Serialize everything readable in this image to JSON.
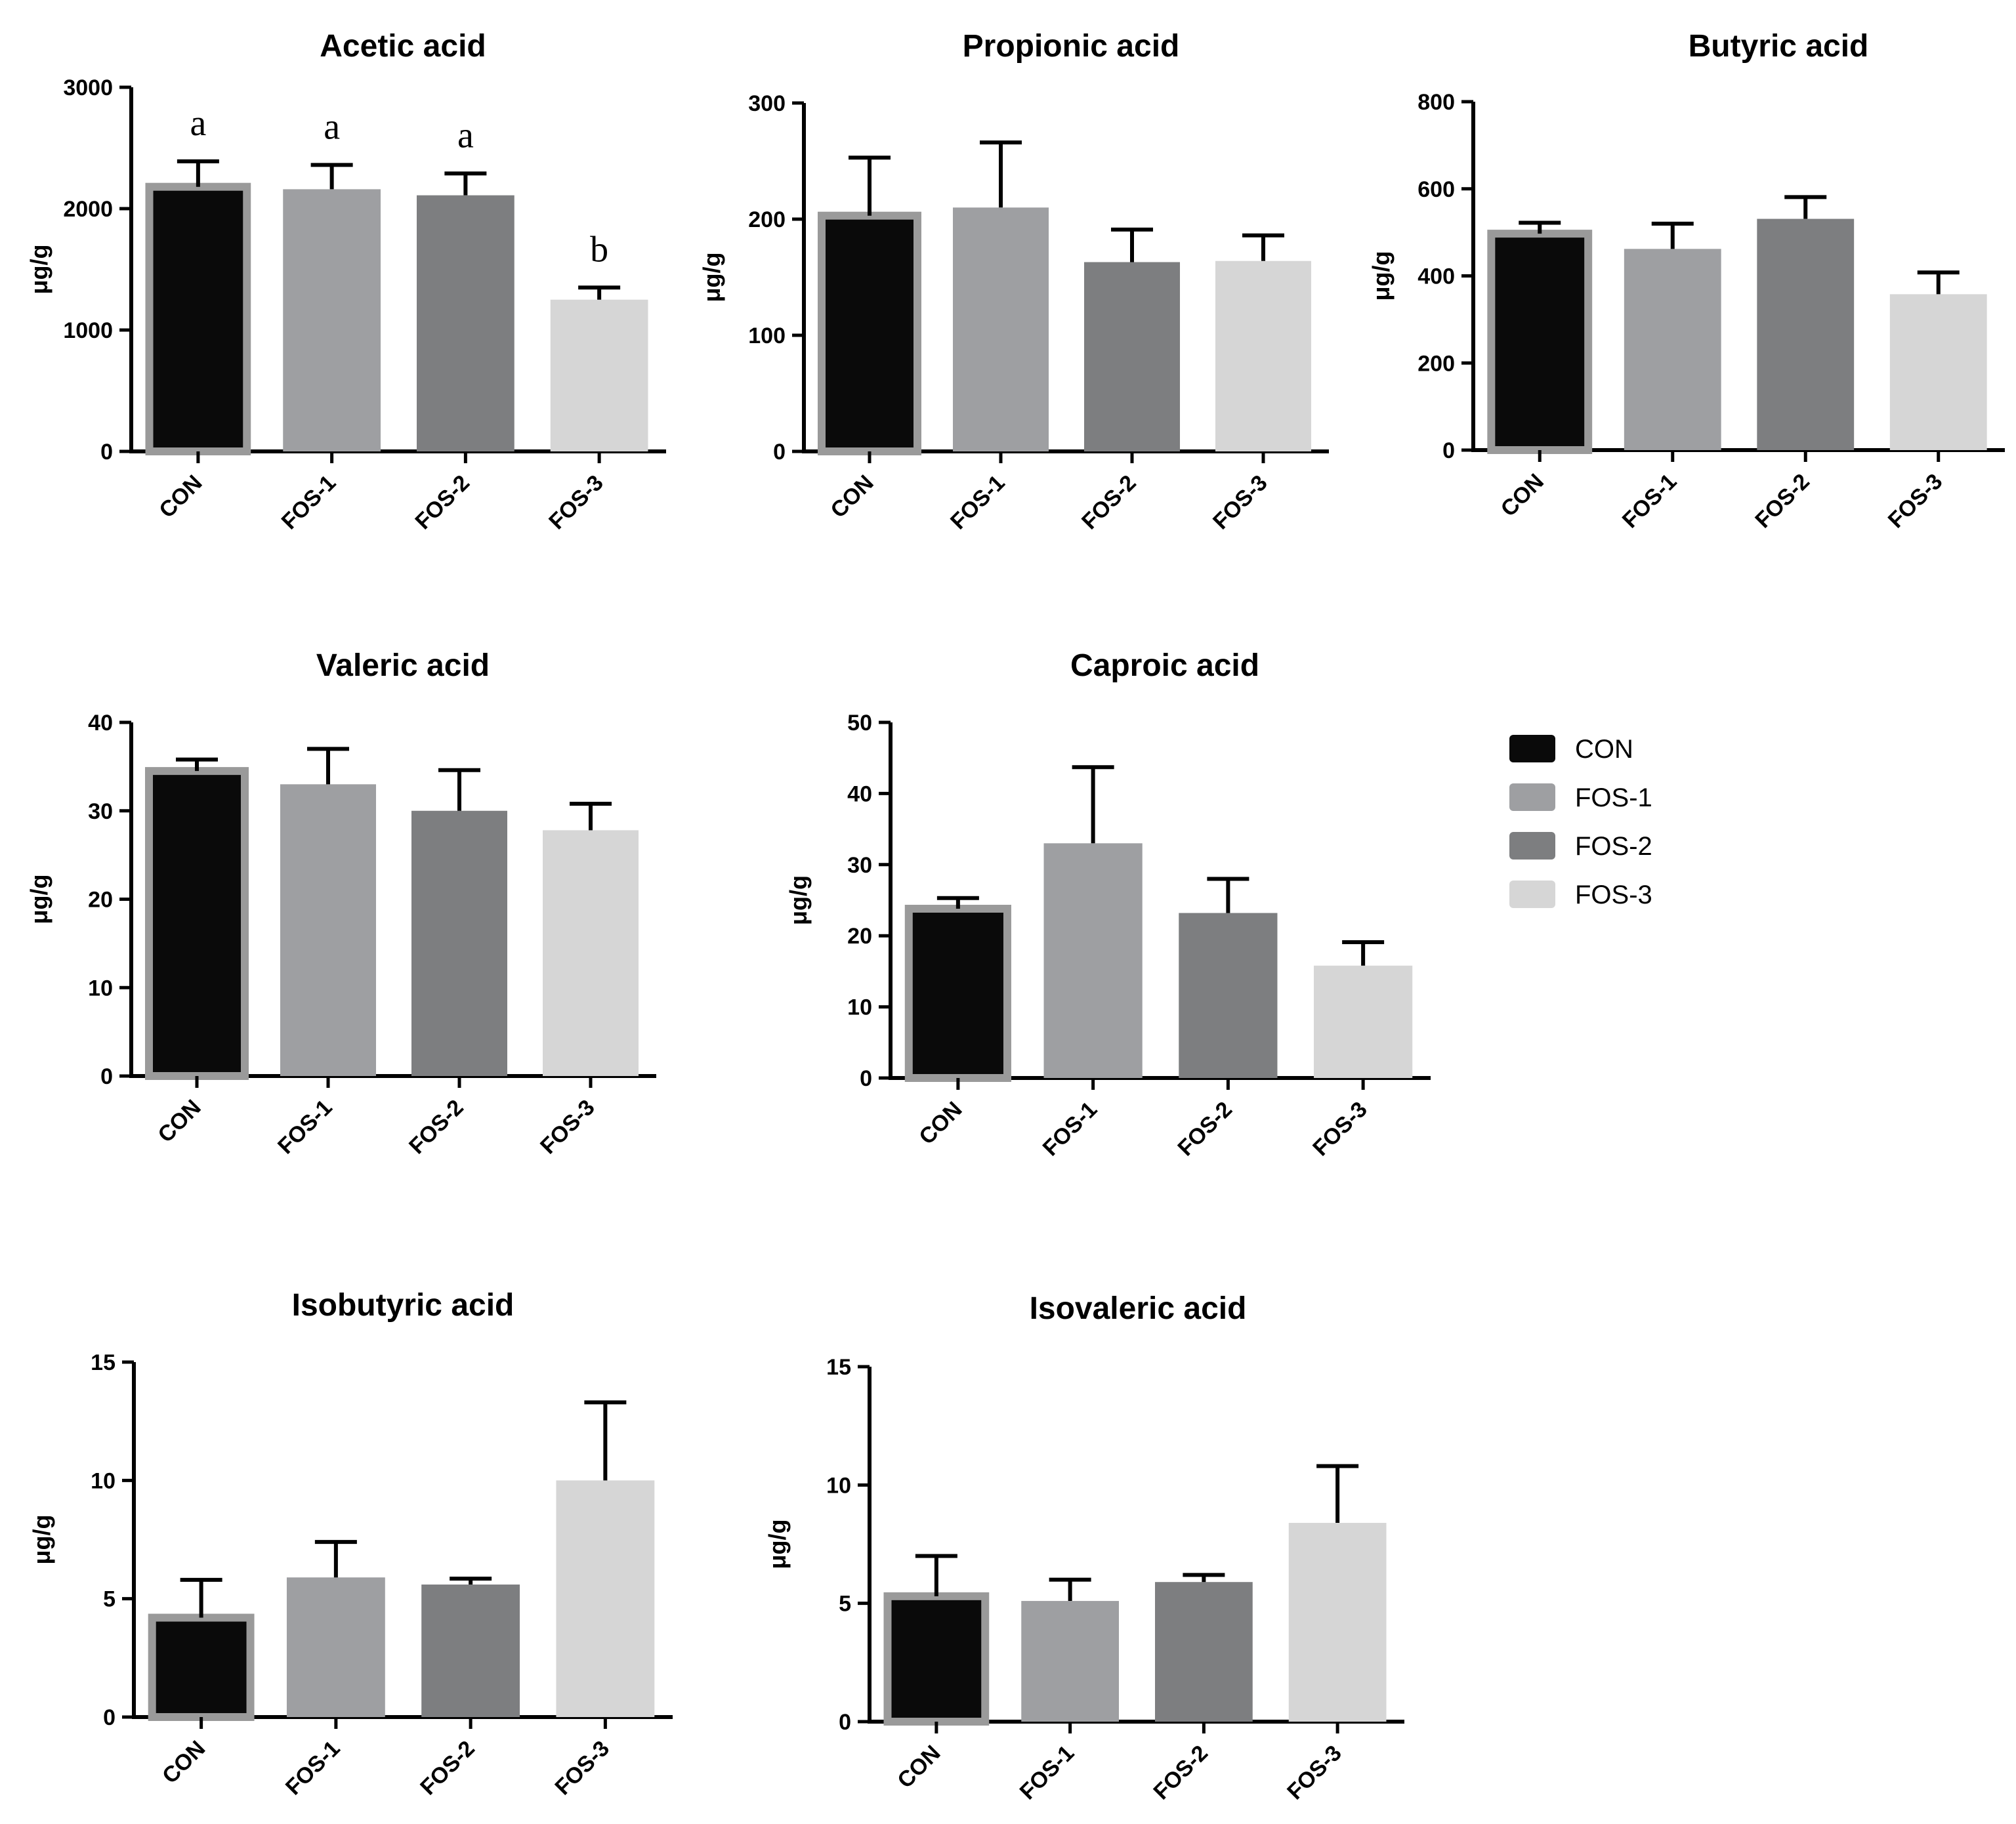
{
  "colors": {
    "CON": "#0a0a0a",
    "FOS-1": "#9e9fa2",
    "FOS-2": "#7d7e80",
    "FOS-3": "#d6d6d6",
    "axis": "#000000"
  },
  "legend": {
    "items": [
      {
        "label": "CON",
        "color": "#0a0a0a"
      },
      {
        "label": "FOS-1",
        "color": "#9e9fa2"
      },
      {
        "label": "FOS-2",
        "color": "#7d7e80"
      },
      {
        "label": "FOS-3",
        "color": "#d6d6d6"
      }
    ]
  },
  "chart_data": [
    {
      "type": "bar",
      "title": "Acetic acid",
      "ylabel": "μg/g",
      "xlabel": "",
      "categories": [
        "CON",
        "FOS-1",
        "FOS-2",
        "FOS-3"
      ],
      "values": [
        2180,
        2160,
        2110,
        1250
      ],
      "errors": [
        210,
        200,
        180,
        100
      ],
      "ylim": [
        0,
        3000
      ],
      "yticks": [
        0,
        1000,
        2000,
        3000
      ],
      "significance": [
        "a",
        "a",
        "a",
        "b"
      ]
    },
    {
      "type": "bar",
      "title": "Propionic acid",
      "ylabel": "μg/g",
      "xlabel": "",
      "categories": [
        "CON",
        "FOS-1",
        "FOS-2",
        "FOS-3"
      ],
      "values": [
        203,
        210,
        163,
        164
      ],
      "errors": [
        50,
        56,
        28,
        22
      ],
      "ylim": [
        0,
        300
      ],
      "yticks": [
        0,
        100,
        200,
        300
      ]
    },
    {
      "type": "bar",
      "title": "Butyric acid",
      "ylabel": "μg/g",
      "xlabel": "",
      "categories": [
        "CON",
        "FOS-1",
        "FOS-2",
        "FOS-3"
      ],
      "values": [
        497,
        462,
        531,
        358
      ],
      "errors": [
        25,
        58,
        50,
        50
      ],
      "ylim": [
        0,
        800
      ],
      "yticks": [
        0,
        200,
        400,
        600,
        800
      ]
    },
    {
      "type": "bar",
      "title": "Valeric acid",
      "ylabel": "μg/g",
      "xlabel": "",
      "categories": [
        "CON",
        "FOS-1",
        "FOS-2",
        "FOS-3"
      ],
      "values": [
        34.5,
        33,
        30,
        27.8
      ],
      "errors": [
        1.3,
        4,
        4.6,
        3
      ],
      "ylim": [
        0,
        40
      ],
      "yticks": [
        0,
        10,
        20,
        30,
        40
      ]
    },
    {
      "type": "bar",
      "title": "Caproic acid",
      "ylabel": "μg/g",
      "xlabel": "",
      "categories": [
        "CON",
        "FOS-1",
        "FOS-2",
        "FOS-3"
      ],
      "values": [
        23.8,
        33,
        23.2,
        15.8
      ],
      "errors": [
        1.5,
        10.7,
        4.8,
        3.3
      ],
      "ylim": [
        0,
        50
      ],
      "yticks": [
        0,
        10,
        20,
        30,
        40,
        50
      ]
    },
    {
      "type": "bar",
      "title": "Isobutyric acid",
      "ylabel": "μg/g",
      "xlabel": "",
      "categories": [
        "CON",
        "FOS-1",
        "FOS-2",
        "FOS-3"
      ],
      "values": [
        4.2,
        5.9,
        5.6,
        10
      ],
      "errors": [
        1.6,
        1.5,
        0.25,
        3.3
      ],
      "ylim": [
        0,
        15
      ],
      "yticks": [
        0,
        5,
        10,
        15
      ]
    },
    {
      "type": "bar",
      "title": "Isovaleric acid",
      "ylabel": "μg/g",
      "xlabel": "",
      "categories": [
        "CON",
        "FOS-1",
        "FOS-2",
        "FOS-3"
      ],
      "values": [
        5.3,
        5.1,
        5.9,
        8.4
      ],
      "errors": [
        1.7,
        0.9,
        0.3,
        2.4
      ],
      "ylim": [
        0,
        15
      ],
      "yticks": [
        0,
        5,
        10,
        15
      ]
    }
  ]
}
